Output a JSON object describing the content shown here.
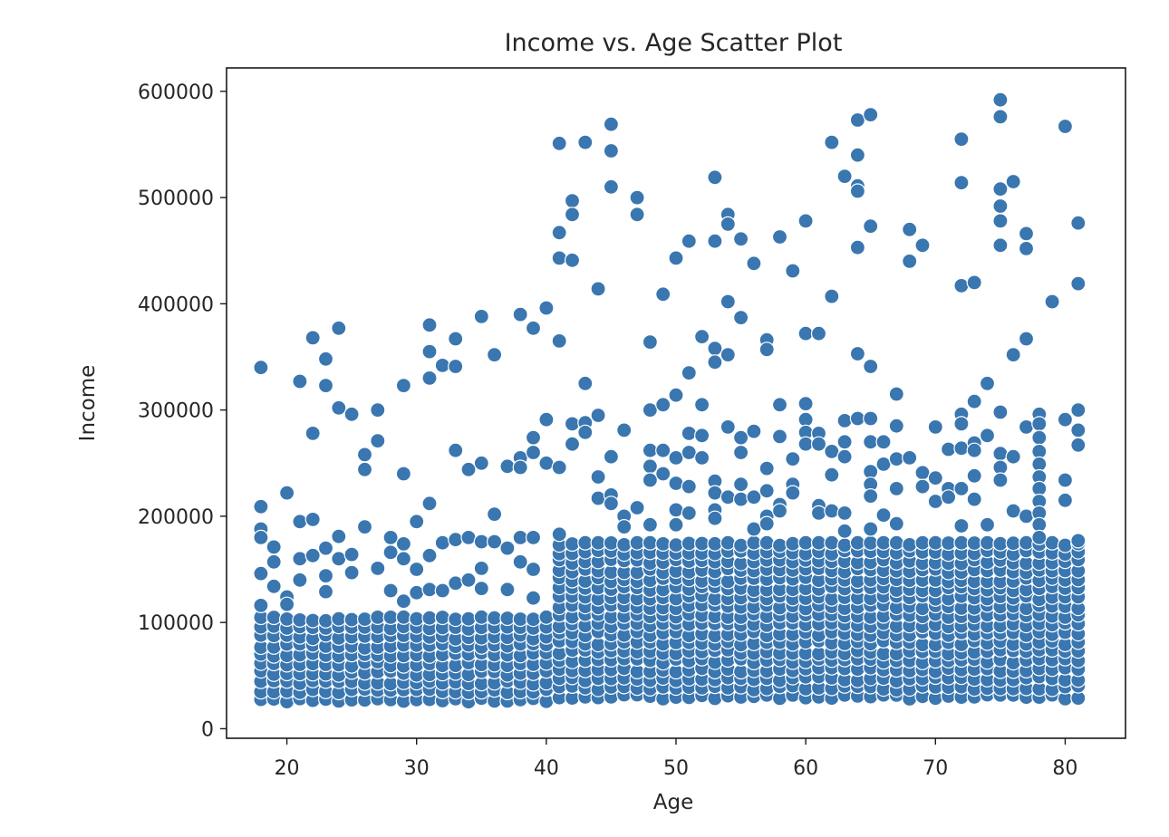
{
  "chart_data": {
    "type": "scatter",
    "title": "Income vs. Age Scatter Plot",
    "xlabel": "Age",
    "ylabel": "Income",
    "xlim": [
      15.35,
      84.65
    ],
    "ylim": [
      -9000,
      622000
    ],
    "xticks": [
      20,
      30,
      40,
      50,
      60,
      70,
      80
    ],
    "yticks": [
      0,
      100000,
      200000,
      300000,
      400000,
      500000,
      600000
    ],
    "grid": false,
    "legend": "none",
    "marker_color": "#3a76af",
    "marker_edge": "#ffffff",
    "bands": [
      {
        "age_range": [
          18,
          40
        ],
        "income_range": [
          25000,
          105000
        ]
      },
      {
        "age_range": [
          41,
          81
        ],
        "income_range": [
          28000,
          175000
        ]
      }
    ],
    "outliers": [
      [
        18,
        340000
      ],
      [
        18,
        209000
      ],
      [
        18,
        188000
      ],
      [
        18,
        180000
      ],
      [
        18,
        146000
      ],
      [
        18,
        116000
      ],
      [
        19,
        171000
      ],
      [
        19,
        157000
      ],
      [
        19,
        134000
      ],
      [
        20,
        222000
      ],
      [
        20,
        124000
      ],
      [
        20,
        117000
      ],
      [
        21,
        327000
      ],
      [
        21,
        195000
      ],
      [
        21,
        160000
      ],
      [
        21,
        140000
      ],
      [
        22,
        368000
      ],
      [
        22,
        278000
      ],
      [
        22,
        197000
      ],
      [
        22,
        163000
      ],
      [
        23,
        348000
      ],
      [
        23,
        323000
      ],
      [
        23,
        170000
      ],
      [
        23,
        144000
      ],
      [
        23,
        129000
      ],
      [
        24,
        377000
      ],
      [
        24,
        302000
      ],
      [
        24,
        181000
      ],
      [
        24,
        160000
      ],
      [
        25,
        296000
      ],
      [
        25,
        164000
      ],
      [
        25,
        147000
      ],
      [
        26,
        258000
      ],
      [
        26,
        244000
      ],
      [
        26,
        190000
      ],
      [
        27,
        300000
      ],
      [
        27,
        271000
      ],
      [
        27,
        151000
      ],
      [
        28,
        180000
      ],
      [
        28,
        166000
      ],
      [
        28,
        130000
      ],
      [
        29,
        323000
      ],
      [
        29,
        240000
      ],
      [
        29,
        174000
      ],
      [
        29,
        160000
      ],
      [
        29,
        120000
      ],
      [
        30,
        195000
      ],
      [
        30,
        150000
      ],
      [
        30,
        128000
      ],
      [
        31,
        380000
      ],
      [
        31,
        355000
      ],
      [
        31,
        330000
      ],
      [
        31,
        212000
      ],
      [
        31,
        163000
      ],
      [
        31,
        131000
      ],
      [
        32,
        342000
      ],
      [
        32,
        175000
      ],
      [
        32,
        130000
      ],
      [
        33,
        367000
      ],
      [
        33,
        341000
      ],
      [
        33,
        262000
      ],
      [
        33,
        178000
      ],
      [
        33,
        137000
      ],
      [
        34,
        244000
      ],
      [
        34,
        180000
      ],
      [
        34,
        140000
      ],
      [
        35,
        388000
      ],
      [
        35,
        250000
      ],
      [
        35,
        176000
      ],
      [
        35,
        151000
      ],
      [
        35,
        132000
      ],
      [
        36,
        352000
      ],
      [
        36,
        202000
      ],
      [
        36,
        176000
      ],
      [
        37,
        247000
      ],
      [
        37,
        170000
      ],
      [
        37,
        131000
      ],
      [
        38,
        390000
      ],
      [
        38,
        255000
      ],
      [
        38,
        246000
      ],
      [
        38,
        180000
      ],
      [
        38,
        157000
      ],
      [
        39,
        377000
      ],
      [
        39,
        274000
      ],
      [
        39,
        260000
      ],
      [
        39,
        180000
      ],
      [
        39,
        150000
      ],
      [
        39,
        123000
      ],
      [
        40,
        396000
      ],
      [
        40,
        291000
      ],
      [
        40,
        250000
      ],
      [
        41,
        551000
      ],
      [
        41,
        467000
      ],
      [
        41,
        443000
      ],
      [
        41,
        365000
      ],
      [
        41,
        246000
      ],
      [
        41,
        183000
      ],
      [
        42,
        497000
      ],
      [
        42,
        484000
      ],
      [
        42,
        441000
      ],
      [
        42,
        287000
      ],
      [
        42,
        268000
      ],
      [
        43,
        552000
      ],
      [
        43,
        325000
      ],
      [
        43,
        288000
      ],
      [
        43,
        279000
      ],
      [
        44,
        414000
      ],
      [
        44,
        295000
      ],
      [
        44,
        237000
      ],
      [
        44,
        217000
      ],
      [
        45,
        569000
      ],
      [
        45,
        544000
      ],
      [
        45,
        510000
      ],
      [
        45,
        256000
      ],
      [
        45,
        220000
      ],
      [
        45,
        212000
      ],
      [
        46,
        281000
      ],
      [
        46,
        200000
      ],
      [
        46,
        190000
      ],
      [
        47,
        500000
      ],
      [
        47,
        484000
      ],
      [
        47,
        208000
      ],
      [
        48,
        364000
      ],
      [
        48,
        300000
      ],
      [
        48,
        262000
      ],
      [
        48,
        247000
      ],
      [
        48,
        234000
      ],
      [
        48,
        192000
      ],
      [
        49,
        409000
      ],
      [
        49,
        305000
      ],
      [
        49,
        262000
      ],
      [
        49,
        240000
      ],
      [
        50,
        443000
      ],
      [
        50,
        314000
      ],
      [
        50,
        255000
      ],
      [
        50,
        231000
      ],
      [
        50,
        206000
      ],
      [
        50,
        192000
      ],
      [
        51,
        459000
      ],
      [
        51,
        335000
      ],
      [
        51,
        278000
      ],
      [
        51,
        260000
      ],
      [
        51,
        228000
      ],
      [
        51,
        203000
      ],
      [
        52,
        369000
      ],
      [
        52,
        305000
      ],
      [
        52,
        276000
      ],
      [
        52,
        255000
      ],
      [
        53,
        519000
      ],
      [
        53,
        459000
      ],
      [
        53,
        358000
      ],
      [
        53,
        345000
      ],
      [
        53,
        233000
      ],
      [
        53,
        222000
      ],
      [
        53,
        206000
      ],
      [
        53,
        198000
      ],
      [
        54,
        484000
      ],
      [
        54,
        475000
      ],
      [
        54,
        402000
      ],
      [
        54,
        352000
      ],
      [
        54,
        284000
      ],
      [
        54,
        218000
      ],
      [
        55,
        461000
      ],
      [
        55,
        387000
      ],
      [
        55,
        274000
      ],
      [
        55,
        260000
      ],
      [
        55,
        230000
      ],
      [
        55,
        216000
      ],
      [
        56,
        438000
      ],
      [
        56,
        280000
      ],
      [
        56,
        218000
      ],
      [
        56,
        188000
      ],
      [
        57,
        366000
      ],
      [
        57,
        357000
      ],
      [
        57,
        245000
      ],
      [
        57,
        224000
      ],
      [
        57,
        200000
      ],
      [
        57,
        193000
      ],
      [
        58,
        463000
      ],
      [
        58,
        305000
      ],
      [
        58,
        275000
      ],
      [
        58,
        211000
      ],
      [
        58,
        205000
      ],
      [
        59,
        431000
      ],
      [
        59,
        254000
      ],
      [
        59,
        230000
      ],
      [
        59,
        222000
      ],
      [
        60,
        478000
      ],
      [
        60,
        372000
      ],
      [
        60,
        306000
      ],
      [
        60,
        291000
      ],
      [
        60,
        279000
      ],
      [
        60,
        268000
      ],
      [
        61,
        372000
      ],
      [
        61,
        278000
      ],
      [
        61,
        268000
      ],
      [
        61,
        210000
      ],
      [
        61,
        203000
      ],
      [
        62,
        552000
      ],
      [
        62,
        407000
      ],
      [
        62,
        261000
      ],
      [
        62,
        239000
      ],
      [
        62,
        205000
      ],
      [
        63,
        520000
      ],
      [
        63,
        290000
      ],
      [
        63,
        270000
      ],
      [
        63,
        256000
      ],
      [
        63,
        203000
      ],
      [
        63,
        186000
      ],
      [
        64,
        573000
      ],
      [
        64,
        540000
      ],
      [
        64,
        511000
      ],
      [
        64,
        506000
      ],
      [
        64,
        453000
      ],
      [
        64,
        353000
      ],
      [
        64,
        292000
      ],
      [
        65,
        578000
      ],
      [
        65,
        473000
      ],
      [
        65,
        341000
      ],
      [
        65,
        292000
      ],
      [
        65,
        270000
      ],
      [
        65,
        242000
      ],
      [
        65,
        230000
      ],
      [
        65,
        219000
      ],
      [
        65,
        188000
      ],
      [
        66,
        270000
      ],
      [
        66,
        249000
      ],
      [
        66,
        201000
      ],
      [
        67,
        315000
      ],
      [
        67,
        285000
      ],
      [
        67,
        254000
      ],
      [
        67,
        226000
      ],
      [
        67,
        193000
      ],
      [
        68,
        470000
      ],
      [
        68,
        440000
      ],
      [
        68,
        255000
      ],
      [
        69,
        455000
      ],
      [
        69,
        241000
      ],
      [
        69,
        228000
      ],
      [
        70,
        284000
      ],
      [
        70,
        236000
      ],
      [
        70,
        214000
      ],
      [
        71,
        263000
      ],
      [
        71,
        226000
      ],
      [
        71,
        218000
      ],
      [
        72,
        555000
      ],
      [
        72,
        514000
      ],
      [
        72,
        417000
      ],
      [
        72,
        296000
      ],
      [
        72,
        287000
      ],
      [
        72,
        264000
      ],
      [
        72,
        226000
      ],
      [
        72,
        191000
      ],
      [
        73,
        420000
      ],
      [
        73,
        308000
      ],
      [
        73,
        269000
      ],
      [
        73,
        262000
      ],
      [
        73,
        238000
      ],
      [
        73,
        216000
      ],
      [
        74,
        325000
      ],
      [
        74,
        276000
      ],
      [
        74,
        192000
      ],
      [
        75,
        592000
      ],
      [
        75,
        576000
      ],
      [
        75,
        508000
      ],
      [
        75,
        492000
      ],
      [
        75,
        478000
      ],
      [
        75,
        455000
      ],
      [
        75,
        298000
      ],
      [
        75,
        259000
      ],
      [
        75,
        246000
      ],
      [
        75,
        234000
      ],
      [
        76,
        515000
      ],
      [
        76,
        352000
      ],
      [
        76,
        256000
      ],
      [
        76,
        205000
      ],
      [
        77,
        466000
      ],
      [
        77,
        452000
      ],
      [
        77,
        367000
      ],
      [
        77,
        284000
      ],
      [
        77,
        200000
      ],
      [
        78,
        296000
      ],
      [
        78,
        287000
      ],
      [
        78,
        274000
      ],
      [
        78,
        261000
      ],
      [
        78,
        249000
      ],
      [
        78,
        237000
      ],
      [
        78,
        226000
      ],
      [
        78,
        214000
      ],
      [
        78,
        203000
      ],
      [
        78,
        192000
      ],
      [
        78,
        180000
      ],
      [
        79,
        402000
      ],
      [
        80,
        567000
      ],
      [
        80,
        291000
      ],
      [
        80,
        234000
      ],
      [
        80,
        215000
      ],
      [
        81,
        476000
      ],
      [
        81,
        419000
      ],
      [
        81,
        300000
      ],
      [
        81,
        281000
      ],
      [
        81,
        267000
      ],
      [
        81,
        177000
      ]
    ]
  }
}
